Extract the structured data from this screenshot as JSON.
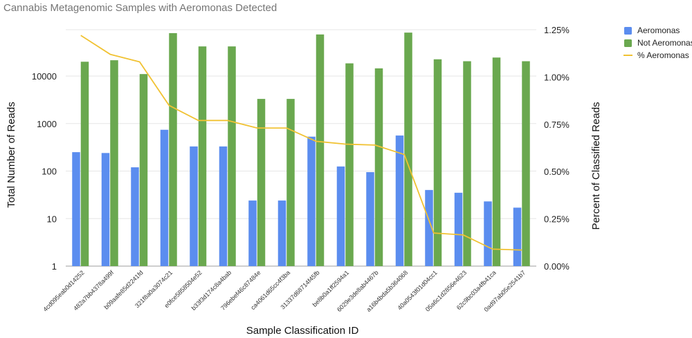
{
  "chart_data": {
    "type": "bar",
    "title": "Cannabis Metagenomic Samples with Aeromonas Detected",
    "xlabel": "Sample Classification ID",
    "ylabel": "Total Number of Reads",
    "y2label": "Percent of Classified Reads",
    "yscale": "log",
    "ylim": [
      1,
      100000
    ],
    "y_ticks": [
      1,
      10,
      100,
      1000,
      10000
    ],
    "y_tick_labels": [
      "1",
      "10",
      "100",
      "1000",
      "10000"
    ],
    "y2lim": [
      0,
      1.25
    ],
    "y2_ticks": [
      0,
      0.25,
      0.5,
      0.75,
      1.0,
      1.25
    ],
    "y2_tick_labels": [
      "0.00%",
      "0.25%",
      "0.50%",
      "0.75%",
      "1.00%",
      "1.25%"
    ],
    "grid": true,
    "legend_position": "right",
    "categories": [
      "4cd095eab0d14252",
      "482a7bb4378a499f",
      "b09aafe85d2241fd",
      "321f8a0a3074c21",
      "e0fce5858504e52",
      "b33f3d174c8a4bab",
      "796ebef46c87484e",
      "ca4061d65cc4f3ba",
      "31337d68714f45fb",
      "be8b0a1ff2594a1",
      "6029e3de8ab4467b",
      "a16b4bda5b364068",
      "40a0543f01d04cc1",
      "05a6c1d2856e4623",
      "62c9bc03a4fb41ca",
      "0ad97ab05e2541b7"
    ],
    "series": [
      {
        "name": "Aeromonas",
        "type": "bar",
        "axis": "left",
        "color": "#5b8def",
        "values": [
          250,
          240,
          120,
          740,
          330,
          330,
          24,
          24,
          530,
          125,
          95,
          560,
          40,
          35,
          23,
          17
        ]
      },
      {
        "name": "Not Aeromonas",
        "type": "bar",
        "axis": "left",
        "color": "#6aa84f",
        "values": [
          20000,
          21500,
          11000,
          80000,
          42000,
          42000,
          3300,
          3300,
          75000,
          18500,
          14500,
          82000,
          22500,
          20500,
          24500,
          20500
        ]
      },
      {
        "name": "% Aeromonas",
        "type": "line",
        "axis": "right",
        "color": "#f1c232",
        "values": [
          1.22,
          1.12,
          1.08,
          0.85,
          0.77,
          0.77,
          0.73,
          0.73,
          0.66,
          0.645,
          0.64,
          0.59,
          0.175,
          0.165,
          0.09,
          0.085
        ]
      }
    ]
  }
}
